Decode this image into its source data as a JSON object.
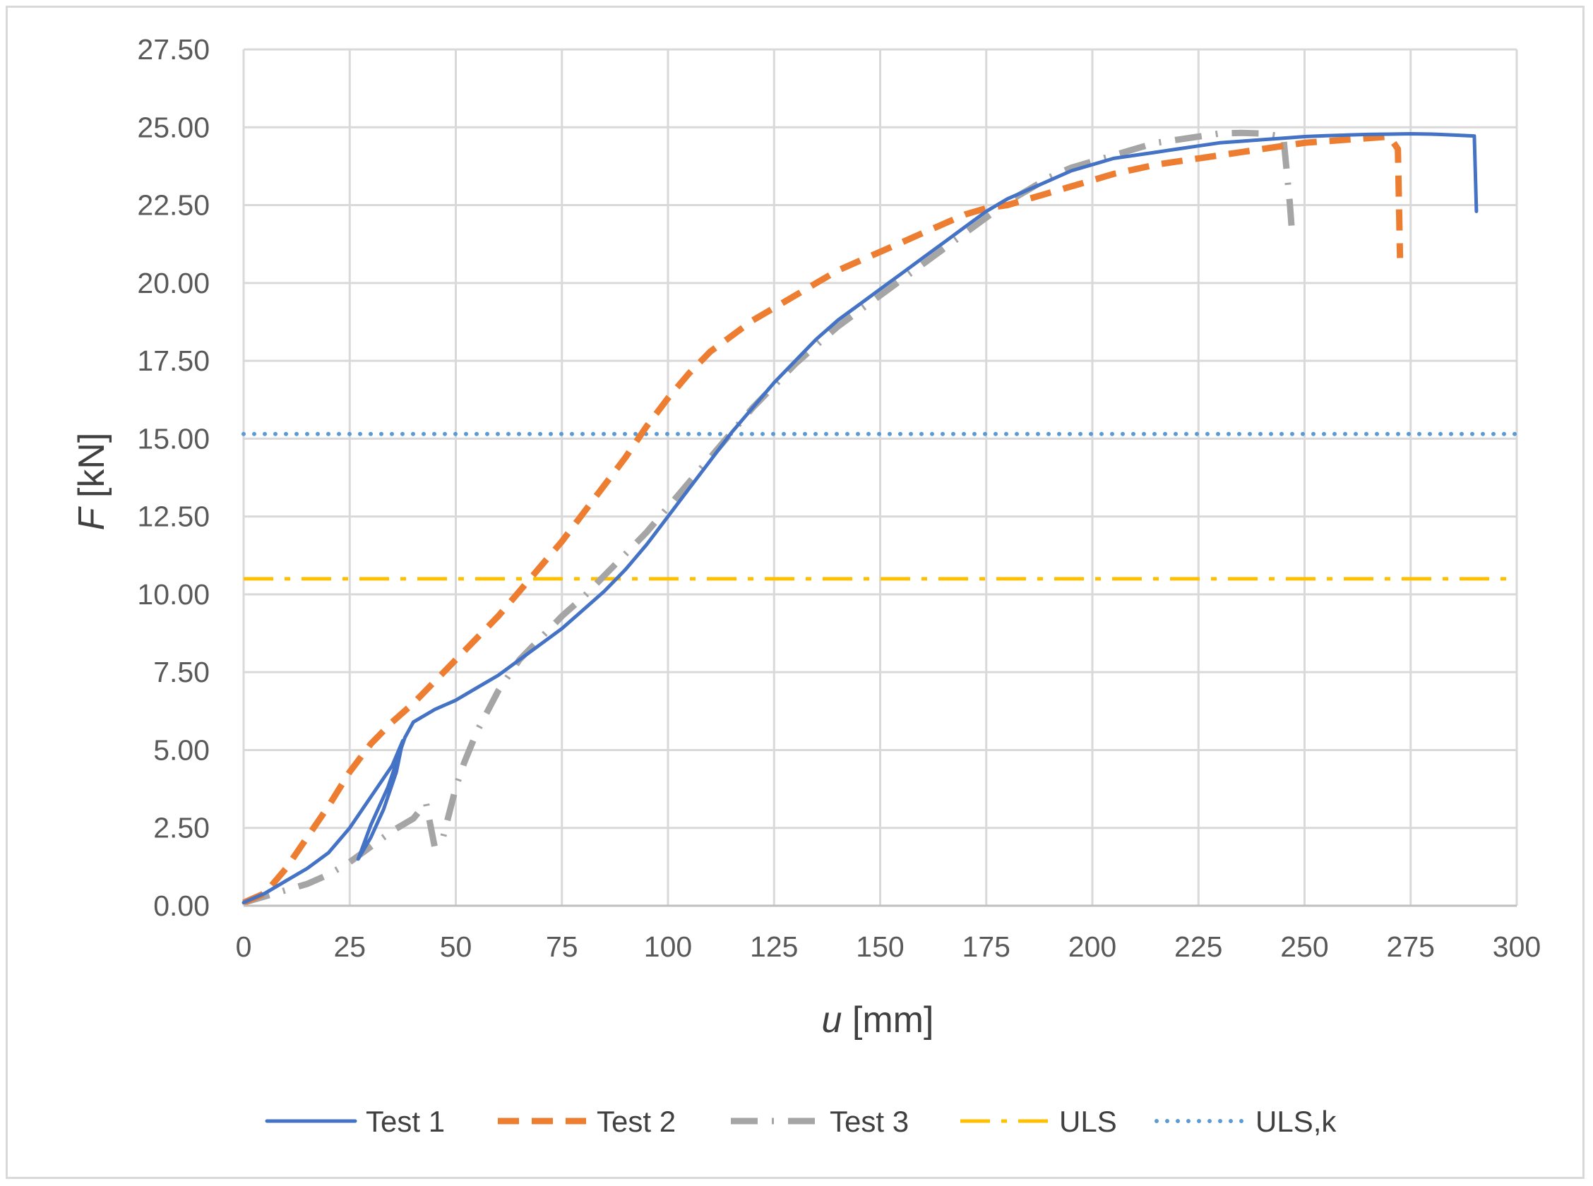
{
  "chart_data": {
    "type": "line",
    "title": "",
    "xlabel_var": "u",
    "xlabel_unit": " [mm]",
    "ylabel_var": "F",
    "ylabel_unit": " [kN]",
    "xlim": [
      0,
      300
    ],
    "ylim": [
      0,
      27.5
    ],
    "x_ticks": [
      "0",
      "25",
      "50",
      "75",
      "100",
      "125",
      "150",
      "175",
      "200",
      "225",
      "250",
      "275",
      "300"
    ],
    "y_ticks": [
      "0.00",
      "2.50",
      "5.00",
      "7.50",
      "10.00",
      "12.50",
      "15.00",
      "17.50",
      "20.00",
      "22.50",
      "25.00",
      "27.50"
    ],
    "grid": true,
    "legend_position": "bottom",
    "series": [
      {
        "name": "Test 1",
        "color": "#4472c4",
        "style": "solid",
        "points": [
          [
            0,
            0.1
          ],
          [
            5,
            0.4
          ],
          [
            10,
            0.8
          ],
          [
            15,
            1.2
          ],
          [
            20,
            1.7
          ],
          [
            25,
            2.5
          ],
          [
            30,
            3.5
          ],
          [
            35,
            4.5
          ],
          [
            37.5,
            5.3
          ],
          [
            36,
            4.3
          ],
          [
            33,
            3.1
          ],
          [
            30,
            2.2
          ],
          [
            27,
            1.5
          ],
          [
            30,
            2.6
          ],
          [
            34,
            3.8
          ],
          [
            38,
            5.4
          ],
          [
            40,
            5.9
          ],
          [
            45,
            6.3
          ],
          [
            50,
            6.6
          ],
          [
            55,
            7.0
          ],
          [
            60,
            7.4
          ],
          [
            65,
            7.9
          ],
          [
            70,
            8.4
          ],
          [
            75,
            8.9
          ],
          [
            80,
            9.5
          ],
          [
            85,
            10.1
          ],
          [
            90,
            10.8
          ],
          [
            95,
            11.6
          ],
          [
            100,
            12.5
          ],
          [
            105,
            13.4
          ],
          [
            110,
            14.3
          ],
          [
            115,
            15.2
          ],
          [
            120,
            16.0
          ],
          [
            125,
            16.8
          ],
          [
            130,
            17.5
          ],
          [
            135,
            18.2
          ],
          [
            140,
            18.8
          ],
          [
            145,
            19.3
          ],
          [
            150,
            19.8
          ],
          [
            155,
            20.3
          ],
          [
            160,
            20.8
          ],
          [
            165,
            21.3
          ],
          [
            170,
            21.8
          ],
          [
            175,
            22.3
          ],
          [
            180,
            22.7
          ],
          [
            185,
            23.0
          ],
          [
            190,
            23.3
          ],
          [
            195,
            23.6
          ],
          [
            200,
            23.8
          ],
          [
            205,
            24.0
          ],
          [
            210,
            24.1
          ],
          [
            215,
            24.2
          ],
          [
            220,
            24.3
          ],
          [
            225,
            24.4
          ],
          [
            230,
            24.5
          ],
          [
            235,
            24.55
          ],
          [
            240,
            24.6
          ],
          [
            245,
            24.65
          ],
          [
            250,
            24.7
          ],
          [
            255,
            24.73
          ],
          [
            260,
            24.75
          ],
          [
            265,
            24.77
          ],
          [
            270,
            24.78
          ],
          [
            275,
            24.79
          ],
          [
            280,
            24.78
          ],
          [
            285,
            24.75
          ],
          [
            290,
            24.72
          ],
          [
            290.5,
            22.3
          ]
        ]
      },
      {
        "name": "Test 2",
        "color": "#ed7d31",
        "style": "dash",
        "points": [
          [
            0,
            0.1
          ],
          [
            5,
            0.4
          ],
          [
            10,
            1.2
          ],
          [
            15,
            2.2
          ],
          [
            20,
            3.2
          ],
          [
            25,
            4.3
          ],
          [
            30,
            5.2
          ],
          [
            35,
            5.9
          ],
          [
            40,
            6.5
          ],
          [
            45,
            7.2
          ],
          [
            50,
            7.9
          ],
          [
            55,
            8.6
          ],
          [
            60,
            9.3
          ],
          [
            65,
            10.1
          ],
          [
            70,
            10.9
          ],
          [
            75,
            11.7
          ],
          [
            80,
            12.6
          ],
          [
            85,
            13.5
          ],
          [
            90,
            14.4
          ],
          [
            95,
            15.4
          ],
          [
            100,
            16.3
          ],
          [
            105,
            17.1
          ],
          [
            110,
            17.8
          ],
          [
            115,
            18.3
          ],
          [
            120,
            18.8
          ],
          [
            125,
            19.2
          ],
          [
            130,
            19.6
          ],
          [
            135,
            20.0
          ],
          [
            140,
            20.4
          ],
          [
            145,
            20.7
          ],
          [
            150,
            21.0
          ],
          [
            155,
            21.3
          ],
          [
            160,
            21.6
          ],
          [
            165,
            21.9
          ],
          [
            170,
            22.2
          ],
          [
            175,
            22.4
          ],
          [
            180,
            22.5
          ],
          [
            185,
            22.7
          ],
          [
            190,
            22.9
          ],
          [
            195,
            23.1
          ],
          [
            200,
            23.3
          ],
          [
            205,
            23.5
          ],
          [
            210,
            23.65
          ],
          [
            215,
            23.8
          ],
          [
            220,
            23.9
          ],
          [
            225,
            24.0
          ],
          [
            230,
            24.1
          ],
          [
            235,
            24.2
          ],
          [
            240,
            24.3
          ],
          [
            245,
            24.4
          ],
          [
            250,
            24.5
          ],
          [
            255,
            24.55
          ],
          [
            260,
            24.6
          ],
          [
            265,
            24.65
          ],
          [
            270,
            24.7
          ],
          [
            272,
            24.3
          ],
          [
            272.5,
            20.8
          ]
        ]
      },
      {
        "name": "Test 3",
        "color": "#a5a5a5",
        "style": "dashdot",
        "points": [
          [
            0,
            0.1
          ],
          [
            5,
            0.3
          ],
          [
            10,
            0.5
          ],
          [
            15,
            0.7
          ],
          [
            20,
            1.0
          ],
          [
            25,
            1.4
          ],
          [
            30,
            1.9
          ],
          [
            35,
            2.4
          ],
          [
            40,
            2.8
          ],
          [
            43,
            3.3
          ],
          [
            45,
            1.9
          ],
          [
            47,
            2.2
          ],
          [
            50,
            3.8
          ],
          [
            52,
            4.6
          ],
          [
            55,
            5.6
          ],
          [
            60,
            6.9
          ],
          [
            65,
            7.9
          ],
          [
            70,
            8.6
          ],
          [
            75,
            9.3
          ],
          [
            80,
            9.9
          ],
          [
            85,
            10.6
          ],
          [
            90,
            11.3
          ],
          [
            95,
            12.0
          ],
          [
            100,
            12.8
          ],
          [
            105,
            13.6
          ],
          [
            110,
            14.4
          ],
          [
            115,
            15.2
          ],
          [
            120,
            16.0
          ],
          [
            125,
            16.7
          ],
          [
            130,
            17.4
          ],
          [
            135,
            18.0
          ],
          [
            140,
            18.6
          ],
          [
            145,
            19.1
          ],
          [
            150,
            19.6
          ],
          [
            155,
            20.1
          ],
          [
            160,
            20.6
          ],
          [
            165,
            21.1
          ],
          [
            170,
            21.6
          ],
          [
            175,
            22.1
          ],
          [
            180,
            22.6
          ],
          [
            185,
            23.0
          ],
          [
            190,
            23.4
          ],
          [
            195,
            23.7
          ],
          [
            200,
            23.9
          ],
          [
            205,
            24.1
          ],
          [
            210,
            24.3
          ],
          [
            215,
            24.5
          ],
          [
            220,
            24.6
          ],
          [
            225,
            24.7
          ],
          [
            230,
            24.8
          ],
          [
            235,
            24.82
          ],
          [
            240,
            24.8
          ],
          [
            245,
            24.7
          ],
          [
            246.5,
            22.6
          ],
          [
            247,
            21.7
          ]
        ]
      },
      {
        "name": "ULS",
        "color": "#ffc000",
        "style": "longdashdot",
        "points": [
          [
            0,
            10.5
          ],
          [
            300,
            10.5
          ]
        ]
      },
      {
        "name": "ULS,k",
        "color": "#5b9bd5",
        "style": "dot",
        "points": [
          [
            0,
            15.15
          ],
          [
            300,
            15.15
          ]
        ]
      }
    ]
  }
}
